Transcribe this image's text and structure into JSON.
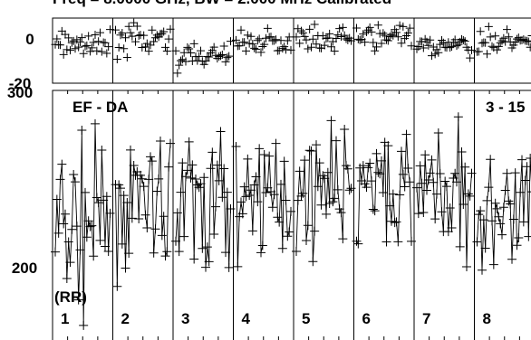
{
  "header_text": "Freq = 8.0000 GHz, BW = 2.000 MHz   Calibrated",
  "chart_data": {
    "type": "scatter",
    "baseline_label": "EF - DA",
    "timerange_label": "3 - 15",
    "polarization_label": "(RR)",
    "panels": [
      {
        "name": "phase",
        "ylim": [
          -20,
          15
        ],
        "ytick_labels": [
          "0",
          "-20"
        ]
      },
      {
        "name": "amplitude",
        "ylim": [
          170,
          300
        ],
        "ytick_labels": [
          "300",
          "200"
        ]
      }
    ],
    "subpanel_labels": [
      "1",
      "2",
      "3",
      "4",
      "5",
      "6",
      "7",
      "8"
    ],
    "amp_base": [
      232,
      245,
      242,
      248,
      252,
      250,
      250,
      242
    ],
    "amp_spread": [
      32,
      26,
      28,
      24,
      22,
      24,
      24,
      26
    ],
    "phase_base": [
      1,
      3,
      -5,
      2,
      4,
      5,
      0,
      2
    ],
    "phase_spread": [
      6,
      6,
      6,
      5,
      5,
      5,
      5,
      5
    ],
    "points_per_subpanel": 34,
    "marker": "+",
    "connect_points": true,
    "grid": false,
    "colors": {
      "points": "#000000",
      "background": "#ffffff"
    }
  }
}
